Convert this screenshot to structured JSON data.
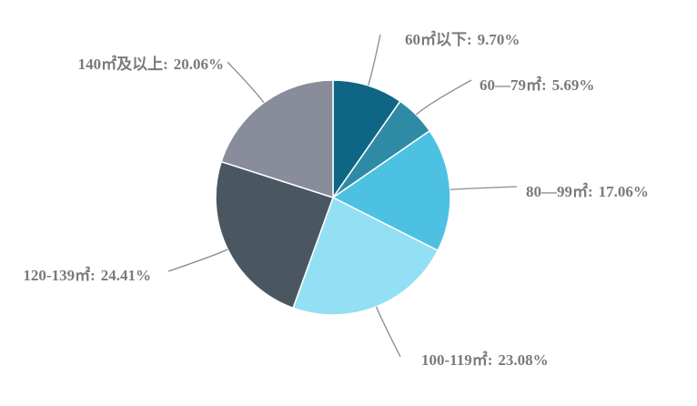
{
  "chart_data": {
    "type": "pie",
    "categories": [
      "60㎡以下:",
      "60—79㎡:",
      "80—99㎡:",
      "100-119㎡:",
      "120-139㎡:",
      "140㎡及以上:"
    ],
    "values": [
      9.7,
      5.69,
      17.06,
      23.08,
      24.41,
      20.06
    ],
    "value_labels": [
      "9.70%",
      "5.69%",
      "17.06%",
      "23.08%",
      "24.41%",
      "20.06%"
    ],
    "colors": [
      "#0f6684",
      "#2f8ba5",
      "#4dc1e1",
      "#93dff4",
      "#4a5761",
      "#898c9a"
    ]
  }
}
